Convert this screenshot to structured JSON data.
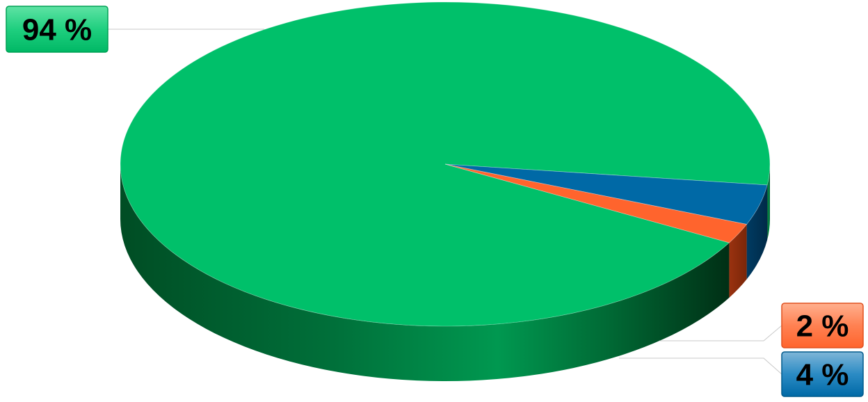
{
  "chart_data": {
    "type": "pie",
    "style": "3d",
    "categories": [
      "green",
      "orange",
      "blue"
    ],
    "values": [
      94,
      2,
      4
    ],
    "labels": [
      "94 %",
      "2 %",
      "4 %"
    ],
    "colors": {
      "green": "#00c06a",
      "orange": "#ff642d",
      "blue": "#0069a6"
    },
    "title": "",
    "legend": "none"
  }
}
